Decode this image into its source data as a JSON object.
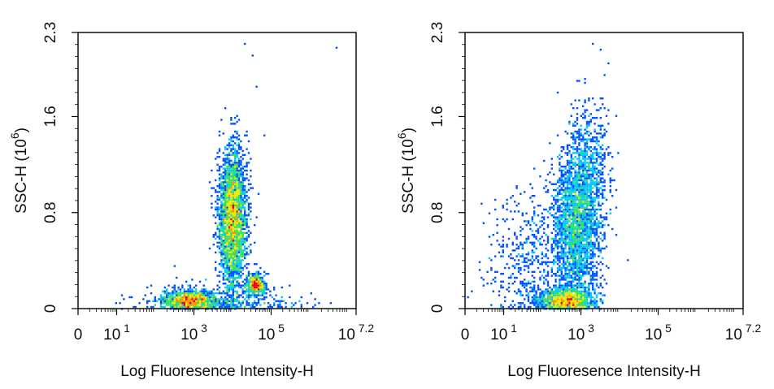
{
  "chart_data": [
    {
      "type": "scatter",
      "subtype": "density-dot-plot",
      "xlabel": "Log Fluoresence Intensity-H",
      "ylabel": "SSC-H",
      "ylabel_unit_base": "(10",
      "ylabel_unit_exp": "6",
      "ylabel_unit_close": ")",
      "x_scale": "log",
      "xlim": [
        0,
        7.2
      ],
      "ylim": [
        0,
        2.3
      ],
      "x_ticks": [
        {
          "base": "0",
          "exp": ""
        },
        {
          "base": "10",
          "exp": "1"
        },
        {
          "base": "10",
          "exp": "3"
        },
        {
          "base": "10",
          "exp": "5"
        },
        {
          "base": "10",
          "exp": "7.2"
        }
      ],
      "y_ticks": [
        "0",
        "0.8",
        "1.6",
        "2.3"
      ],
      "grid": false,
      "colormap": [
        "#0000c8",
        "#0050ff",
        "#00c8ff",
        "#30e060",
        "#e8e800",
        "#ff9000",
        "#e00000"
      ],
      "populations": [
        {
          "cx": 2.9,
          "cy": 0.07,
          "sx": 0.35,
          "sy": 0.04,
          "weight": 0.22
        },
        {
          "cx": 4.0,
          "cy": 0.75,
          "sx": 0.18,
          "sy": 0.28,
          "weight": 0.6
        },
        {
          "cx": 4.6,
          "cy": 0.2,
          "sx": 0.12,
          "sy": 0.04,
          "weight": 0.1
        },
        {
          "cx": 3.6,
          "cy": 0.05,
          "sx": 1.0,
          "sy": 0.08,
          "weight": 0.08
        }
      ],
      "outliers": [
        [
          4.3,
          1.45
        ],
        [
          4.1,
          1.6
        ],
        [
          4.5,
          2.1
        ],
        [
          4.3,
          2.2
        ],
        [
          6.7,
          2.17
        ],
        [
          4.8,
          1.45
        ],
        [
          4.6,
          1.85
        ],
        [
          2.2,
          0.02
        ],
        [
          1.1,
          0.05
        ],
        [
          3.4,
          0.5
        ],
        [
          3.7,
          0.52
        ]
      ]
    },
    {
      "type": "scatter",
      "subtype": "density-dot-plot",
      "xlabel": "Log Fluoresence Intensity-H",
      "ylabel": "SSC-H",
      "ylabel_unit_base": "(10",
      "ylabel_unit_exp": "6",
      "ylabel_unit_close": ")",
      "x_scale": "log",
      "xlim": [
        0,
        7.2
      ],
      "ylim": [
        0,
        2.3
      ],
      "x_ticks": [
        {
          "base": "0",
          "exp": ""
        },
        {
          "base": "10",
          "exp": "1"
        },
        {
          "base": "10",
          "exp": "3"
        },
        {
          "base": "10",
          "exp": "5"
        },
        {
          "base": "10",
          "exp": "7.2"
        }
      ],
      "y_ticks": [
        "0",
        "0.8",
        "1.6",
        "2.3"
      ],
      "grid": false,
      "colormap": [
        "#0000c8",
        "#0050ff",
        "#00c8ff",
        "#30e060",
        "#e8e800",
        "#ff9000",
        "#e00000"
      ],
      "populations": [
        {
          "cx": 2.6,
          "cy": 0.07,
          "sx": 0.35,
          "sy": 0.05,
          "weight": 0.3
        },
        {
          "cx": 2.9,
          "cy": 0.7,
          "sx": 0.3,
          "sy": 0.3,
          "weight": 0.5
        },
        {
          "cx": 3.2,
          "cy": 1.2,
          "sx": 0.25,
          "sy": 0.25,
          "weight": 0.1
        },
        {
          "cx": 1.8,
          "cy": 0.4,
          "sx": 0.6,
          "sy": 0.3,
          "weight": 0.1
        }
      ],
      "outliers": [
        [
          3.3,
          2.2
        ],
        [
          3.5,
          2.15
        ],
        [
          3.6,
          1.95
        ],
        [
          3.7,
          2.05
        ],
        [
          2.4,
          1.8
        ],
        [
          0.1,
          0.1
        ],
        [
          0.2,
          0.15
        ],
        [
          0.5,
          0.2
        ],
        [
          4.2,
          0.4
        ],
        [
          3.9,
          1.6
        ]
      ]
    }
  ]
}
